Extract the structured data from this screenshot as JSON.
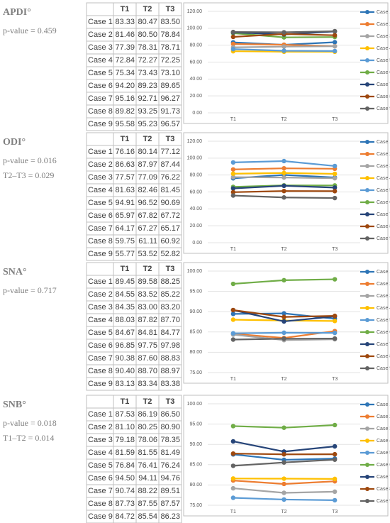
{
  "chart_data": [
    {
      "type": "line",
      "title": "APDI°",
      "notes": [
        "p-value = 0.459"
      ],
      "categories": [
        "T1",
        "T2",
        "T3"
      ],
      "ylim": [
        0,
        120
      ],
      "yticks": [
        {
          "value": 0,
          "label": "0.00"
        },
        {
          "value": 20,
          "label": "20.00"
        },
        {
          "value": 40,
          "label": "40.00"
        },
        {
          "value": 60,
          "label": "60.00"
        },
        {
          "value": 80,
          "label": "80.00"
        },
        {
          "value": 100,
          "label": "100.00"
        },
        {
          "value": 120,
          "label": "120.00"
        }
      ],
      "grid": true,
      "series": [
        {
          "name": "Case 1",
          "color": "#2e75b6",
          "values": [
            83.33,
            80.47,
            83.5
          ],
          "value_labels": [
            "83.33",
            "80.47",
            "83.50"
          ]
        },
        {
          "name": "Case 2",
          "color": "#ed7d31",
          "values": [
            81.46,
            80.5,
            78.84
          ],
          "value_labels": [
            "81.46",
            "80.50",
            "78.84"
          ]
        },
        {
          "name": "Case 3",
          "color": "#a5a5a5",
          "values": [
            77.39,
            78.31,
            78.71
          ],
          "value_labels": [
            "77.39",
            "78.31",
            "78.71"
          ]
        },
        {
          "name": "Case 4",
          "color": "#ffc000",
          "values": [
            72.84,
            72.27,
            72.25
          ],
          "value_labels": [
            "72.84",
            "72.27",
            "72.25"
          ]
        },
        {
          "name": "Case 5",
          "color": "#5b9bd5",
          "values": [
            75.34,
            73.43,
            73.1
          ],
          "value_labels": [
            "75.34",
            "73.43",
            "73.10"
          ]
        },
        {
          "name": "Case 6",
          "color": "#70ad47",
          "values": [
            94.2,
            89.23,
            89.65
          ],
          "value_labels": [
            "94.20",
            "89.23",
            "89.65"
          ]
        },
        {
          "name": "Case 7",
          "color": "#264478",
          "values": [
            95.16,
            92.71,
            96.27
          ],
          "value_labels": [
            "95.16",
            "92.71",
            "96.27"
          ]
        },
        {
          "name": "Case 8",
          "color": "#9e480e",
          "values": [
            89.82,
            93.25,
            91.73
          ],
          "value_labels": [
            "89.82",
            "93.25",
            "91.73"
          ]
        },
        {
          "name": "Case 9",
          "color": "#636363",
          "values": [
            95.58,
            95.23,
            96.57
          ],
          "value_labels": [
            "95.58",
            "95.23",
            "96.57"
          ]
        }
      ]
    },
    {
      "type": "line",
      "title": "ODI°",
      "notes": [
        "p-value = 0.016",
        "T2–T3 = 0.029"
      ],
      "categories": [
        "T1",
        "T2",
        "T3"
      ],
      "ylim": [
        0,
        120
      ],
      "yticks": [
        {
          "value": 0,
          "label": "0.00"
        },
        {
          "value": 20,
          "label": "20.00"
        },
        {
          "value": 40,
          "label": "40.00"
        },
        {
          "value": 60,
          "label": "60.00"
        },
        {
          "value": 80,
          "label": "80.00"
        },
        {
          "value": 100,
          "label": "100.00"
        },
        {
          "value": 120,
          "label": "120.00"
        }
      ],
      "grid": true,
      "series": [
        {
          "name": "Case 1",
          "color": "#2e75b6",
          "values": [
            76.16,
            80.14,
            77.12
          ],
          "value_labels": [
            "76.16",
            "80.14",
            "77.12"
          ]
        },
        {
          "name": "Case 2",
          "color": "#ed7d31",
          "values": [
            86.63,
            87.97,
            87.44
          ],
          "value_labels": [
            "86.63",
            "87.97",
            "87.44"
          ]
        },
        {
          "name": "Case 3",
          "color": "#a5a5a5",
          "values": [
            77.57,
            77.09,
            76.22
          ],
          "value_labels": [
            "77.57",
            "77.09",
            "76.22"
          ]
        },
        {
          "name": "Case 4",
          "color": "#ffc000",
          "values": [
            81.63,
            82.46,
            81.45
          ],
          "value_labels": [
            "81.63",
            "82.46",
            "81.45"
          ]
        },
        {
          "name": "Case 5",
          "color": "#5b9bd5",
          "values": [
            94.91,
            96.52,
            90.69
          ],
          "value_labels": [
            "94.91",
            "96.52",
            "90.69"
          ]
        },
        {
          "name": "Case 6",
          "color": "#70ad47",
          "values": [
            65.97,
            67.82,
            67.72
          ],
          "value_labels": [
            "65.97",
            "67.82",
            "67.72"
          ]
        },
        {
          "name": "Case 7",
          "color": "#264478",
          "values": [
            64.17,
            67.27,
            65.17
          ],
          "value_labels": [
            "64.17",
            "67.27",
            "65.17"
          ]
        },
        {
          "name": "Case 8",
          "color": "#9e480e",
          "values": [
            59.75,
            61.11,
            60.92
          ],
          "value_labels": [
            "59.75",
            "61.11",
            "60.92"
          ]
        },
        {
          "name": "Case 9",
          "color": "#636363",
          "values": [
            55.77,
            53.52,
            52.82
          ],
          "value_labels": [
            "55.77",
            "53.52",
            "52.82"
          ]
        }
      ]
    },
    {
      "type": "line",
      "title": "SNA°",
      "notes": [
        "p-value = 0.717"
      ],
      "categories": [
        "T1",
        "T2",
        "T3"
      ],
      "ylim": [
        75,
        100
      ],
      "yticks": [
        {
          "value": 75,
          "label": "75.00"
        },
        {
          "value": 80,
          "label": "80.00"
        },
        {
          "value": 85,
          "label": "85.00"
        },
        {
          "value": 90,
          "label": "90.00"
        },
        {
          "value": 95,
          "label": "95.00"
        },
        {
          "value": 100,
          "label": "100.00"
        }
      ],
      "grid": true,
      "series": [
        {
          "name": "Case 1",
          "color": "#2e75b6",
          "values": [
            89.45,
            89.58,
            88.25
          ],
          "value_labels": [
            "89.45",
            "89.58",
            "88.25"
          ]
        },
        {
          "name": "Case 2",
          "color": "#ed7d31",
          "values": [
            84.55,
            83.52,
            85.22
          ],
          "value_labels": [
            "84.55",
            "83.52",
            "85.22"
          ]
        },
        {
          "name": "Case 3",
          "color": "#a5a5a5",
          "values": [
            84.35,
            83.0,
            83.2
          ],
          "value_labels": [
            "84.35",
            "83.00",
            "83.20"
          ]
        },
        {
          "name": "Case 4",
          "color": "#ffc000",
          "values": [
            88.03,
            87.82,
            87.7
          ],
          "value_labels": [
            "88.03",
            "87.82",
            "87.70"
          ]
        },
        {
          "name": "Case 5",
          "color": "#5b9bd5",
          "values": [
            84.67,
            84.81,
            84.77
          ],
          "value_labels": [
            "84.67",
            "84.81",
            "84.77"
          ]
        },
        {
          "name": "Case 6",
          "color": "#70ad47",
          "values": [
            96.85,
            97.75,
            97.98
          ],
          "value_labels": [
            "96.85",
            "97.75",
            "97.98"
          ]
        },
        {
          "name": "Case 7",
          "color": "#264478",
          "values": [
            90.38,
            87.6,
            88.83
          ],
          "value_labels": [
            "90.38",
            "87.60",
            "88.83"
          ]
        },
        {
          "name": "Case 8",
          "color": "#9e480e",
          "values": [
            90.4,
            88.7,
            88.97
          ],
          "value_labels": [
            "90.40",
            "88.70",
            "88.97"
          ]
        },
        {
          "name": "Case 9",
          "color": "#636363",
          "values": [
            83.13,
            83.34,
            83.38
          ],
          "value_labels": [
            "83.13",
            "83.34",
            "83.38"
          ]
        }
      ]
    },
    {
      "type": "line",
      "title": "SNB°",
      "notes": [
        "p-value = 0.018",
        "T1–T2 = 0.014"
      ],
      "categories": [
        "T1",
        "T2",
        "T3"
      ],
      "ylim": [
        75,
        100
      ],
      "yticks": [
        {
          "value": 75,
          "label": "75.00"
        },
        {
          "value": 80,
          "label": "80.00"
        },
        {
          "value": 85,
          "label": "85.00"
        },
        {
          "value": 90,
          "label": "90.00"
        },
        {
          "value": 95,
          "label": "95.00"
        },
        {
          "value": 100,
          "label": "100.00"
        }
      ],
      "grid": true,
      "series": [
        {
          "name": "Case 1",
          "color": "#2e75b6",
          "values": [
            87.53,
            86.19,
            86.5
          ],
          "value_labels": [
            "87.53",
            "86.19",
            "86.50"
          ]
        },
        {
          "name": "Case 2",
          "color": "#ed7d31",
          "values": [
            81.1,
            80.25,
            80.9
          ],
          "value_labels": [
            "81.10",
            "80.25",
            "80.90"
          ]
        },
        {
          "name": "Case 3",
          "color": "#a5a5a5",
          "values": [
            79.18,
            78.06,
            78.35
          ],
          "value_labels": [
            "79.18",
            "78.06",
            "78.35"
          ]
        },
        {
          "name": "Case 4",
          "color": "#ffc000",
          "values": [
            81.59,
            81.55,
            81.49
          ],
          "value_labels": [
            "81.59",
            "81.55",
            "81.49"
          ]
        },
        {
          "name": "Case 5",
          "color": "#5b9bd5",
          "values": [
            76.84,
            76.41,
            76.24
          ],
          "value_labels": [
            "76.84",
            "76.41",
            "76.24"
          ]
        },
        {
          "name": "Case 6",
          "color": "#70ad47",
          "values": [
            94.5,
            94.11,
            94.76
          ],
          "value_labels": [
            "94.50",
            "94.11",
            "94.76"
          ]
        },
        {
          "name": "Case 7",
          "color": "#264478",
          "values": [
            90.74,
            88.22,
            89.51
          ],
          "value_labels": [
            "90.74",
            "88.22",
            "89.51"
          ]
        },
        {
          "name": "Case 8",
          "color": "#9e480e",
          "values": [
            87.73,
            87.55,
            87.57
          ],
          "value_labels": [
            "87.73",
            "87.55",
            "87.57"
          ]
        },
        {
          "name": "Case 9",
          "color": "#636363",
          "values": [
            84.72,
            85.54,
            86.23
          ],
          "value_labels": [
            "84.72",
            "85.54",
            "86.23"
          ]
        }
      ]
    }
  ]
}
